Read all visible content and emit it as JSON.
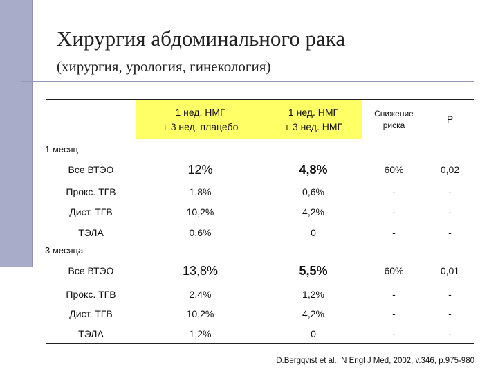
{
  "header": {
    "title": "Хирургия абдоминального рака",
    "subtitle": "(хирургия, урология, гинекология)"
  },
  "table": {
    "columns": [
      [
        "1 нед. НМГ",
        "+ 3 нед. плацебо"
      ],
      [
        "1 нед. НМГ",
        "+ 3 нед. НМГ"
      ],
      [
        "Снижение",
        "риска"
      ],
      [
        "P"
      ]
    ],
    "sections": [
      {
        "label": "1 месяц",
        "rows": [
          [
            "Все ВТЭО",
            "12%",
            "4,8%",
            "60%",
            "0,02"
          ],
          [
            "Прокс. ТГВ",
            "1,8%",
            "0,6%",
            "-",
            "-"
          ],
          [
            "Дист. ТГВ",
            "10,2%",
            "4,2%",
            "-",
            "-"
          ],
          [
            "ТЭЛА",
            "0,6%",
            "0",
            "-",
            "-"
          ]
        ]
      },
      {
        "label": "3 месяца",
        "rows": [
          [
            "Все ВТЭО",
            "13,8%",
            "5,5%",
            "60%",
            "0,01"
          ],
          [
            "Прокс. ТГВ",
            "2,4%",
            "1,2%",
            "-",
            "-"
          ],
          [
            "Дист. ТГВ",
            "10,2%",
            "4,2%",
            "-",
            "-"
          ],
          [
            "ТЭЛА",
            "1,2%",
            "0",
            "-",
            "-"
          ]
        ]
      }
    ]
  },
  "citation": "D.Bergqvist et al., N Engl J Med, 2002, v.346, p.975-980"
}
